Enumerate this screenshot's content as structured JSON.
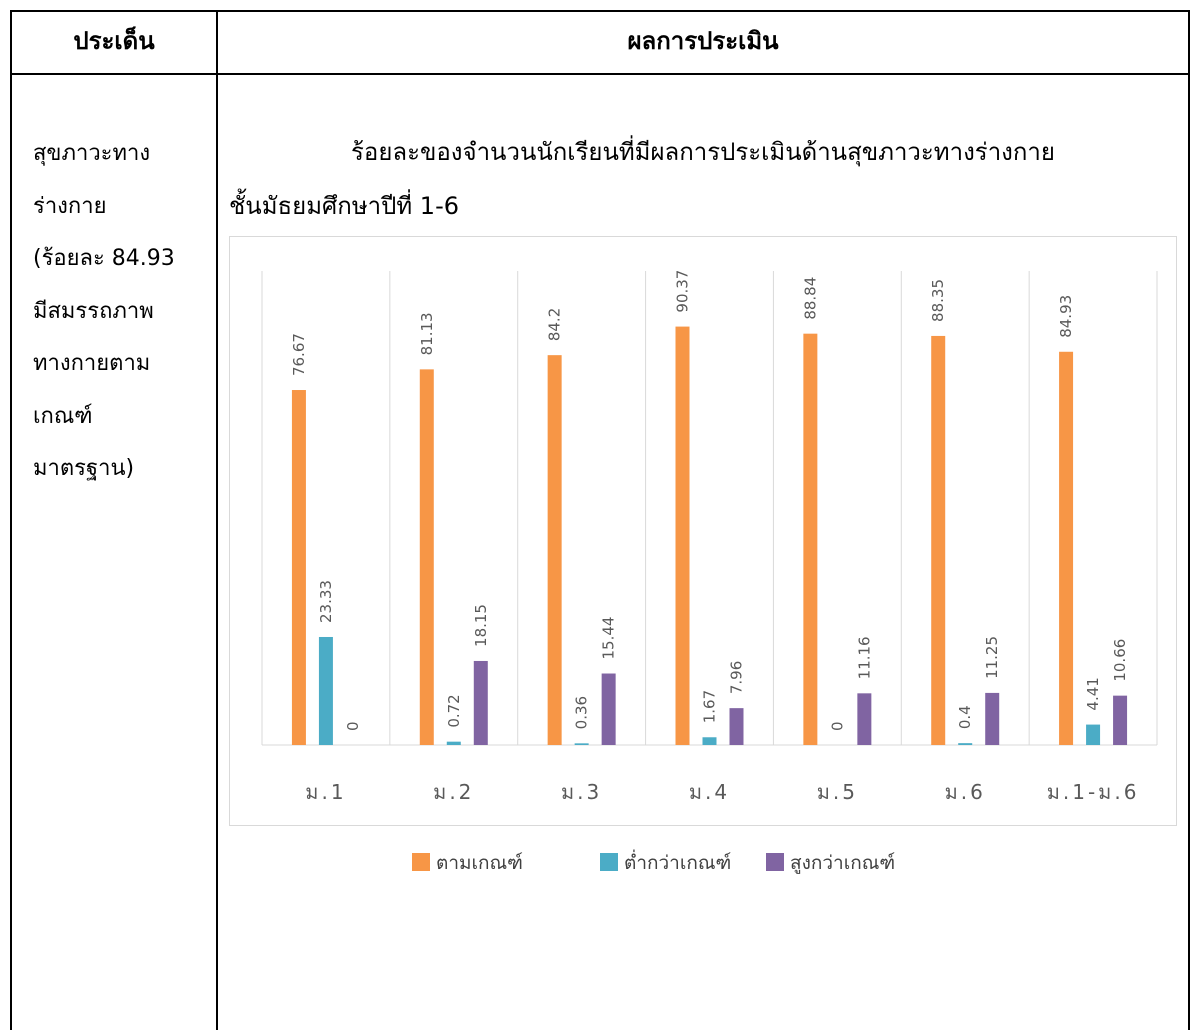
{
  "table": {
    "header_left": "ประเด็น",
    "header_right": "ผลการประเมิน"
  },
  "left_cell": {
    "lines": [
      "สุขภาวะทาง",
      "ร่างกาย",
      "(ร้อยละ 84.93",
      "มีสมรรถภาพ",
      "ทางกายตาม",
      "เกณฑ์",
      "มาตรฐาน)"
    ]
  },
  "chart_heading": {
    "line1": "ร้อยละของจำนวนนักเรียนที่มีผลการประเมินด้านสุขภาวะทางร่างกาย",
    "line2": "ชั้นมัธยมศึกษาปีที่ 1-6"
  },
  "chart_data": {
    "type": "bar",
    "categories": [
      "ม.1",
      "ม.2",
      "ม.3",
      "ม.4",
      "ม.5",
      "ม.6",
      "ม.1-ม.6"
    ],
    "series": [
      {
        "name": "ตามเกณฑ์",
        "color": "#F79646",
        "values": [
          76.67,
          81.13,
          84.2,
          90.37,
          88.84,
          88.35,
          84.93
        ]
      },
      {
        "name": "ต่ำกว่าเกณฑ์",
        "color": "#4BACC6",
        "values": [
          23.33,
          0.72,
          0.36,
          1.67,
          0,
          0.4,
          4.41
        ]
      },
      {
        "name": "สูงกว่าเกณฑ์",
        "color": "#8064A2",
        "values": [
          0,
          18.15,
          15.44,
          7.96,
          11.16,
          11.25,
          10.66
        ]
      }
    ],
    "ylim": [
      0,
      100
    ],
    "grid": "vertical category separators",
    "legend": "bottom-center",
    "data_labels": "rotated above bars"
  }
}
